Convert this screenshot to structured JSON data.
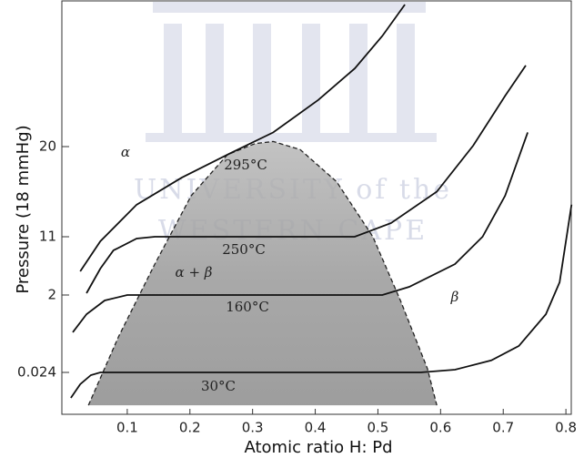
{
  "chart_data": {
    "type": "line",
    "x_label": "Atomic ratio H: Pd",
    "y_label": "Pressure (18 mmHg)",
    "xlim": [
      0,
      0.81
    ],
    "xticks": [
      0.1,
      0.2,
      0.3,
      0.4,
      0.5,
      0.6,
      0.7,
      0.8
    ],
    "ylim": [
      -1.05,
      34
    ],
    "yticks": [
      0.024,
      2,
      11,
      20
    ],
    "series": [
      {
        "name": "295°C",
        "color": "#111111",
        "x": [
          0.025,
          0.057,
          0.115,
          0.187,
          0.26,
          0.333,
          0.405,
          0.463,
          0.507,
          0.543
        ],
        "values": [
          5.66,
          10.3,
          14.2,
          16.9,
          19.2,
          21.4,
          24.6,
          27.7,
          30.9,
          34
        ]
      },
      {
        "name": "250°C",
        "color": "#111111",
        "x": [
          0.035,
          0.057,
          0.078,
          0.115,
          0.144,
          0.463,
          0.521,
          0.594,
          0.652,
          0.703,
          0.736
        ],
        "values": [
          2.28,
          6.08,
          8.89,
          10.72,
          11,
          11,
          12.36,
          15.5,
          20.1,
          25.0,
          28.0
        ]
      },
      {
        "name": "160°C",
        "color": "#111111",
        "x": [
          0.013,
          0.035,
          0.064,
          0.1,
          0.507,
          0.55,
          0.623,
          0.667,
          0.703,
          0.739
        ],
        "values": [
          1.05,
          1.51,
          1.86,
          2,
          2,
          3.27,
          6.78,
          11,
          15.1,
          21.4
        ]
      },
      {
        "name": "30°C",
        "color": "#111111",
        "x": [
          0.01,
          0.025,
          0.042,
          0.057,
          0.568,
          0.623,
          0.681,
          0.725,
          0.768,
          0.79,
          0.809
        ],
        "values": [
          -0.63,
          -0.28,
          -0.046,
          0.024,
          0.024,
          0.094,
          0.33,
          0.7,
          1.51,
          3.97,
          14.2
        ]
      }
    ],
    "boundary": {
      "x": [
        0.038,
        0.086,
        0.144,
        0.202,
        0.26,
        0.304,
        0.333,
        0.376,
        0.434,
        0.492,
        0.536,
        0.579,
        0.594
      ],
      "values": [
        -0.82,
        0.93,
        6.78,
        15.1,
        19.2,
        20.3,
        20.5,
        19.7,
        16.5,
        11,
        1.86,
        0.12,
        -0.82
      ]
    },
    "annotations": [
      "α",
      "α + β",
      "β"
    ],
    "watermark": [
      "UNIVERSITY of the",
      "WESTERN CAPE"
    ]
  }
}
